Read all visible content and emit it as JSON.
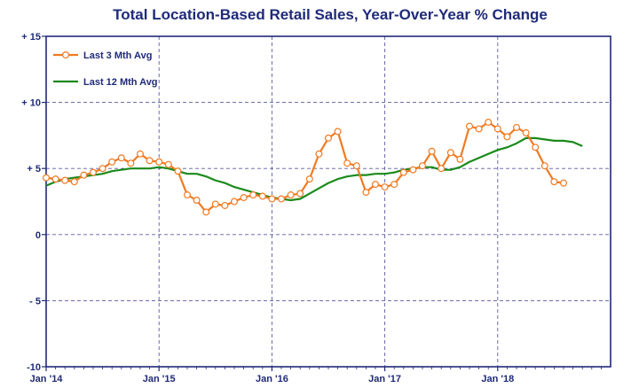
{
  "chart_data": {
    "type": "line",
    "title": "Total Location-Based Retail Sales, Year-Over-Year % Change",
    "xlabel": "",
    "ylabel": "",
    "x_start": "Jan '14",
    "x_tick_labels": [
      "Jan '14",
      "Jan '15",
      "Jan '16",
      "Jan '17",
      "Jan '18"
    ],
    "y_tick_labels": [
      "+ 15",
      "+ 10",
      "+ 5",
      "0",
      "- 5",
      "-10"
    ],
    "y_tick_values": [
      15,
      10,
      5,
      0,
      -5,
      -10
    ],
    "ylim": [
      -10,
      15
    ],
    "x_range_months": [
      0,
      60
    ],
    "grid": true,
    "legend_position": "top-left",
    "colors": {
      "title": "#1f2a78",
      "axis": "#1f2a78",
      "grid": "#5a5aa0",
      "last3": "#f07a22",
      "last12": "#1a8a1a"
    },
    "series": [
      {
        "name": "Last 3 Mth Avg",
        "values": [
          4.3,
          4.2,
          4.1,
          4.0,
          4.5,
          4.7,
          5.0,
          5.5,
          5.8,
          5.4,
          6.1,
          5.6,
          5.5,
          5.3,
          4.8,
          3.0,
          2.6,
          1.7,
          2.3,
          2.2,
          2.5,
          2.8,
          3.0,
          2.9,
          2.7,
          2.7,
          3.0,
          3.1,
          4.2,
          6.1,
          7.3,
          7.8,
          5.4,
          5.2,
          3.2,
          3.8,
          3.6,
          3.8,
          4.7,
          4.9,
          5.2,
          6.3,
          5.0,
          6.2,
          5.7,
          8.2,
          8.0,
          8.5,
          8.0,
          7.4,
          8.1,
          7.7,
          6.6,
          5.2,
          4.0,
          3.9
        ]
      },
      {
        "name": "Last 12 Mth Avg",
        "values": [
          3.7,
          4.0,
          4.2,
          4.3,
          4.4,
          4.5,
          4.6,
          4.8,
          4.9,
          5.0,
          5.0,
          5.0,
          5.1,
          5.0,
          4.8,
          4.6,
          4.6,
          4.4,
          4.1,
          3.9,
          3.6,
          3.4,
          3.2,
          3.0,
          2.8,
          2.7,
          2.6,
          2.7,
          3.1,
          3.5,
          3.9,
          4.2,
          4.4,
          4.5,
          4.5,
          4.6,
          4.6,
          4.7,
          4.9,
          5.0,
          5.1,
          5.1,
          4.9,
          4.9,
          5.1,
          5.5,
          5.8,
          6.1,
          6.4,
          6.6,
          6.9,
          7.3,
          7.3,
          7.2,
          7.1,
          7.1,
          7.0,
          6.7
        ]
      }
    ]
  }
}
